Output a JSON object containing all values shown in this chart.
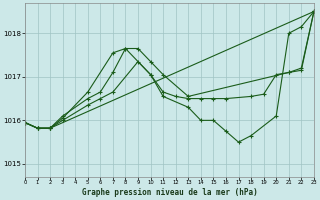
{
  "xlabel": "Graphe pression niveau de la mer (hPa)",
  "xlim": [
    0,
    23
  ],
  "ylim": [
    1014.7,
    1018.7
  ],
  "yticks": [
    1015,
    1016,
    1017,
    1018
  ],
  "xticks": [
    0,
    1,
    2,
    3,
    4,
    5,
    6,
    7,
    8,
    9,
    10,
    11,
    12,
    13,
    14,
    15,
    16,
    17,
    18,
    19,
    20,
    21,
    22,
    23
  ],
  "bg_color": "#cce8e8",
  "line_color": "#1a5c1a",
  "lines": [
    {
      "x": [
        0,
        1,
        2,
        23
      ],
      "y": [
        1015.95,
        1015.82,
        1015.82,
        1018.5
      ]
    },
    {
      "x": [
        0,
        1,
        2,
        3,
        5,
        7,
        8,
        10,
        11,
        13,
        14,
        15,
        16,
        17,
        18,
        20,
        21,
        22,
        23
      ],
      "y": [
        1015.95,
        1015.82,
        1015.82,
        1016.05,
        1016.65,
        1017.55,
        1017.65,
        1017.05,
        1016.55,
        1016.3,
        1016.0,
        1016.0,
        1015.75,
        1015.5,
        1015.65,
        1016.1,
        1018.0,
        1018.15,
        1018.5
      ]
    },
    {
      "x": [
        0,
        1,
        2,
        3,
        5,
        6,
        7,
        9,
        10,
        11,
        12,
        13,
        14,
        15,
        16,
        18,
        19,
        20,
        21,
        22,
        23
      ],
      "y": [
        1015.95,
        1015.82,
        1015.82,
        1016.0,
        1016.35,
        1016.5,
        1016.65,
        1017.35,
        1017.05,
        1016.65,
        1016.55,
        1016.5,
        1016.5,
        1016.5,
        1016.5,
        1016.55,
        1016.6,
        1017.05,
        1017.1,
        1017.15,
        1018.5
      ]
    },
    {
      "x": [
        0,
        1,
        2,
        3,
        5,
        6,
        7,
        8,
        9,
        10,
        11,
        13,
        21,
        22,
        23
      ],
      "y": [
        1015.95,
        1015.82,
        1015.82,
        1016.1,
        1016.5,
        1016.65,
        1017.1,
        1017.65,
        1017.65,
        1017.35,
        1017.05,
        1016.55,
        1017.1,
        1017.2,
        1018.5
      ]
    }
  ]
}
